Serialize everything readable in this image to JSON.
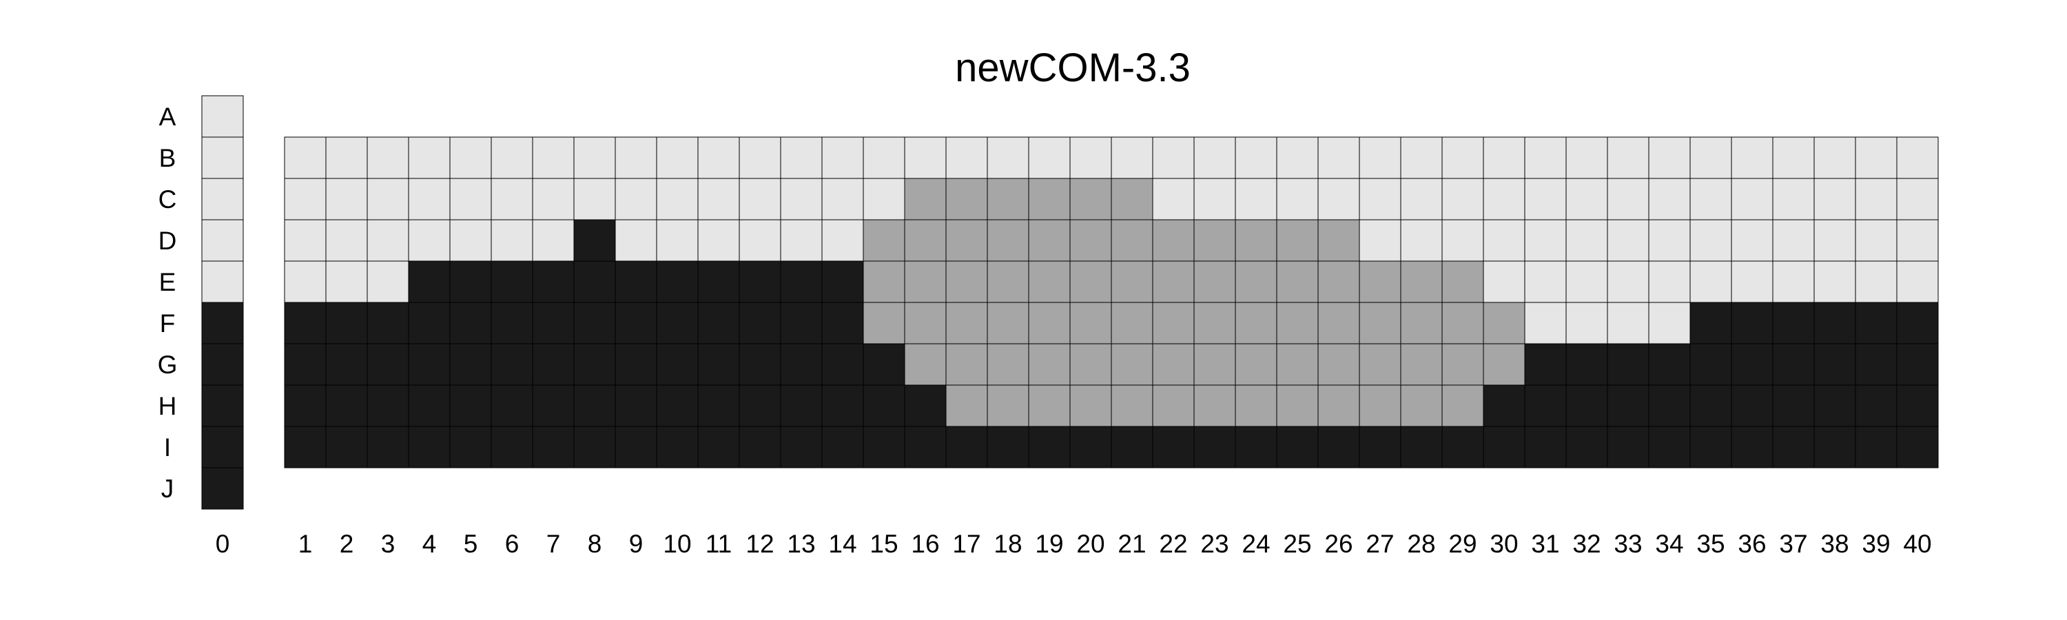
{
  "chart_data": {
    "type": "heatmap",
    "title": "newCOM-3.3",
    "row_labels": [
      "A",
      "B",
      "C",
      "D",
      "E",
      "F",
      "G",
      "H",
      "I",
      "J"
    ],
    "col_labels": [
      "0",
      "1",
      "2",
      "3",
      "4",
      "5",
      "6",
      "7",
      "8",
      "9",
      "10",
      "11",
      "12",
      "13",
      "14",
      "15",
      "16",
      "17",
      "18",
      "19",
      "20",
      "21",
      "22",
      "23",
      "24",
      "25",
      "26",
      "27",
      "28",
      "29",
      "30",
      "31",
      "32",
      "33",
      "34",
      "35",
      "36",
      "37",
      "38",
      "39",
      "40"
    ],
    "legend": {
      "L": "light",
      "M": "medium",
      "D": "dark"
    },
    "colors": {
      "L": "#e6e6e6",
      "M": "#a6a6a6",
      "D": "#1a1a1a",
      "grid": "#000000"
    },
    "column_0": [
      "L",
      "L",
      "L",
      "L",
      "L",
      "D",
      "D",
      "D",
      "D",
      "D"
    ],
    "grid_rows": [
      "B",
      "C",
      "D",
      "E",
      "F",
      "G",
      "H",
      "I"
    ],
    "grid": [
      "LLLLLLLLLLLLLLLLLLLLLLLLLLLLLLLLLLLLLLLL",
      "LLLLLLLLLLLLLLLMMMMMMLLLLLLLLLLLLLLLLLLL",
      "LLLLLLLDLLLLLLMMMMMMMMMMMMLLLLLLLLLLLLLL",
      "LLLDDDDDDDDDDDMMMMMMMMMMMMMMMLLLLLLLLLLL",
      "DDDDDDDDDDDDDDMMMMMMMMMMMMMMMMLLLLDDDDDD",
      "DDDDDDDDDDDDDDDMMMMMMMMMMMMMMMDDDDDDDDDD",
      "DDDDDDDDDDDDDDDDMMMMMMMMMMMMMDDDDDDDDDDD",
      "DDDDDDDDDDDDDDDDDDDDDDDDDDDDDDDDDDDDDDDD"
    ]
  }
}
